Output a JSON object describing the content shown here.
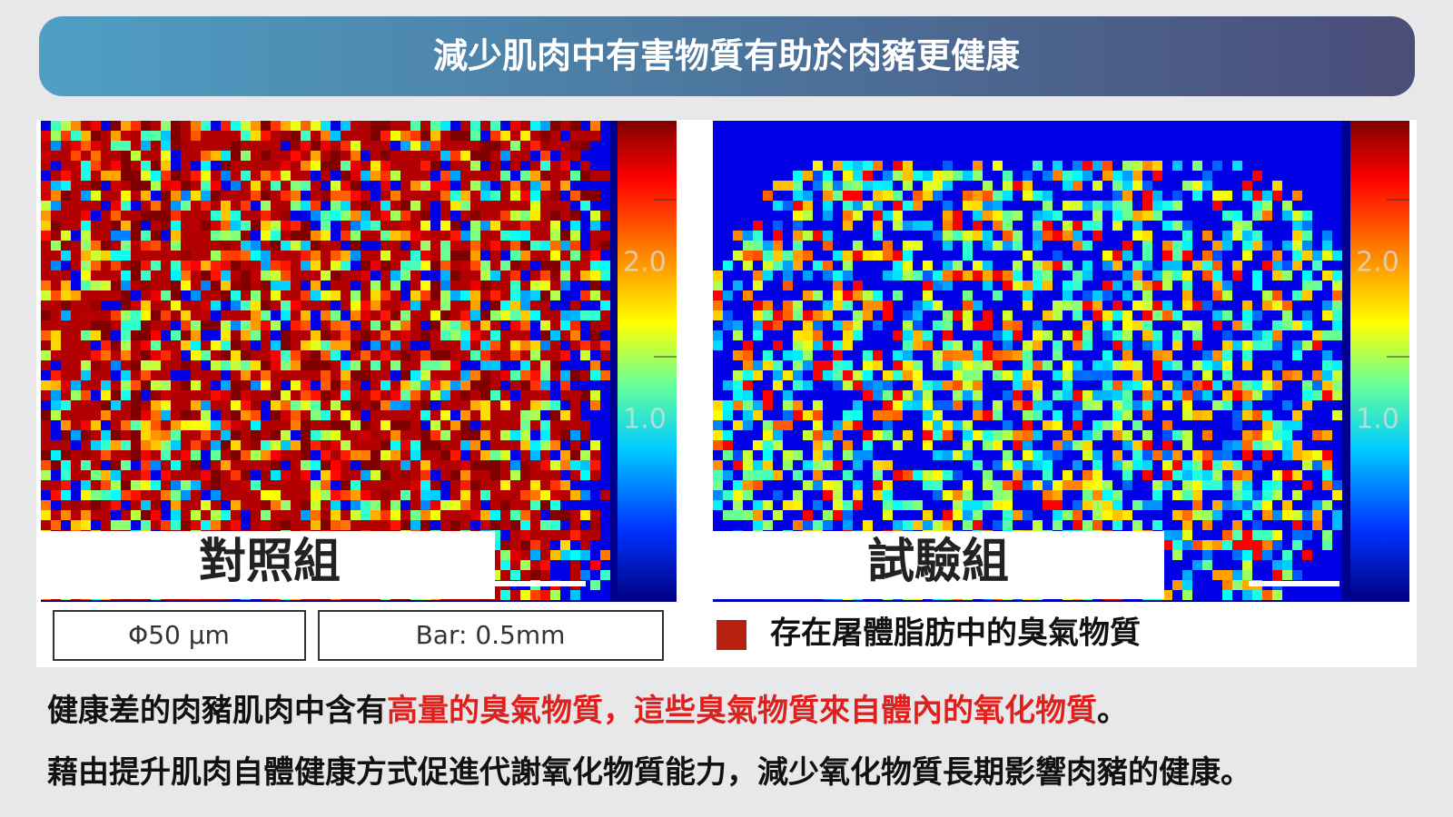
{
  "header": {
    "title": "減少肌肉中有害物質有助於肉豬更健康"
  },
  "panels": [
    {
      "label": "對照組",
      "colorbar_ticks": [
        "2.0",
        "1.0"
      ]
    },
    {
      "label": "試驗組",
      "colorbar_ticks": [
        "2.0",
        "1.0"
      ]
    }
  ],
  "legend": {
    "boxes": [
      "Φ50 μm",
      "Bar: 0.5mm"
    ],
    "swatch_color": "#b8200e",
    "text": "存在屠體脂肪中的臭氣物質"
  },
  "paragraphs": [
    {
      "segments": [
        {
          "text": "健康差的肉豬肌肉中含有",
          "color": "#111111"
        },
        {
          "text": "高量的臭氣物質，這些臭氣物質來自體內的氧化物質",
          "color": "#e0201c"
        },
        {
          "text": "。",
          "color": "#111111"
        }
      ]
    },
    {
      "segments": [
        {
          "text": "藉由提升肌肉自體健康方式促進代謝氧化物質能力，減少氧化物質長期影響肉豬的健康。",
          "color": "#111111"
        }
      ]
    }
  ]
}
